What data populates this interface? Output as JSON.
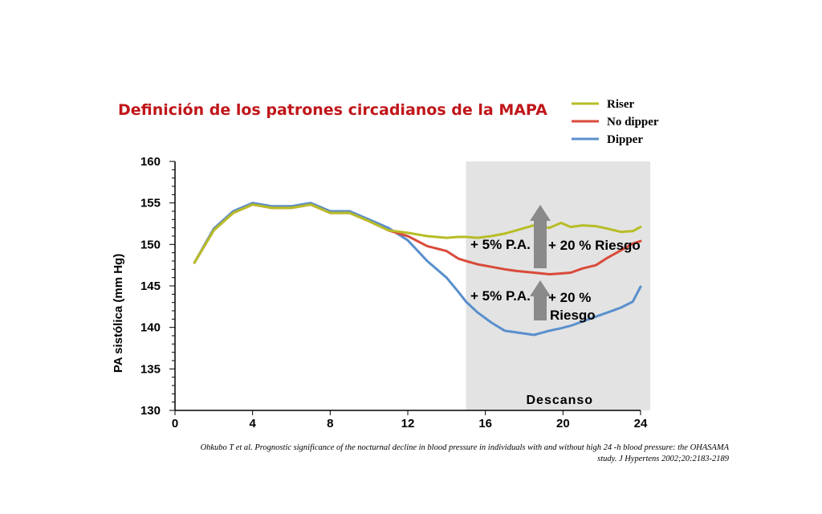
{
  "chart_data": {
    "type": "line",
    "title": "Definición de los patrones circadianos de la MAPA",
    "ylabel": "PA sistólica (mm Hg)",
    "xlabel": "",
    "xlim": [
      0,
      24
    ],
    "ylim": [
      130,
      160
    ],
    "xticks": [
      0,
      4,
      8,
      12,
      16,
      20,
      24
    ],
    "yticks": [
      130,
      135,
      140,
      145,
      150,
      155,
      160
    ],
    "legend_position": "top-right",
    "shaded_region": {
      "x": [
        15,
        24.5
      ],
      "label": "Descanso"
    },
    "series": [
      {
        "name": "Riser",
        "color": "#b7bd26",
        "x": [
          1,
          2,
          3,
          4,
          5,
          6,
          7,
          8,
          9,
          10,
          11,
          12,
          13,
          14,
          14.6,
          15,
          15.6,
          16.3,
          17,
          17.6,
          18.5,
          19.3,
          19.9,
          20.4,
          21,
          21.7,
          22.3,
          23,
          23.6,
          24
        ],
        "values": [
          147.8,
          151.7,
          153.8,
          154.8,
          154.4,
          154.4,
          154.8,
          153.8,
          153.8,
          152.8,
          151.7,
          151.4,
          151.0,
          150.8,
          150.9,
          150.9,
          150.8,
          151.0,
          151.3,
          151.7,
          152.3,
          152.0,
          152.6,
          152.1,
          152.3,
          152.2,
          151.9,
          151.5,
          151.6,
          152.1
        ]
      },
      {
        "name": "No dipper",
        "color": "#d94a3a",
        "x": [
          1,
          2,
          3,
          4,
          5,
          6,
          7,
          8,
          9,
          10,
          11,
          12,
          13,
          14,
          14.6,
          15,
          15.6,
          16.3,
          17,
          17.6,
          18.5,
          19.3,
          19.9,
          20.4,
          21,
          21.7,
          22.3,
          23,
          23.6,
          24
        ],
        "values": [
          147.8,
          151.7,
          153.8,
          154.8,
          154.4,
          154.4,
          154.8,
          153.8,
          153.8,
          152.8,
          151.7,
          151.0,
          149.8,
          149.2,
          148.3,
          148.0,
          147.6,
          147.3,
          147.0,
          146.8,
          146.6,
          146.4,
          146.5,
          146.6,
          147.1,
          147.5,
          148.4,
          149.3,
          150.1,
          150.4
        ]
      },
      {
        "name": "Dipper",
        "color": "#5a8fcc",
        "x": [
          1,
          2,
          3,
          4,
          5,
          6,
          7,
          8,
          9,
          10,
          11,
          12,
          13,
          14,
          14.6,
          15,
          15.6,
          16.3,
          17,
          17.6,
          18.5,
          19.3,
          19.9,
          20.4,
          21,
          21.7,
          22.3,
          23,
          23.6,
          24
        ],
        "values": [
          147.8,
          151.9,
          154.0,
          155.0,
          154.6,
          154.6,
          155.0,
          154.0,
          154.0,
          153.0,
          152.0,
          150.5,
          148.0,
          146.0,
          144.3,
          143.1,
          141.8,
          140.6,
          139.6,
          139.4,
          139.1,
          139.6,
          139.9,
          140.2,
          140.7,
          141.3,
          141.8,
          142.4,
          143.1,
          144.9
        ]
      }
    ],
    "annotations": [
      {
        "id": "upper",
        "text_left": "+  5% P.A.",
        "text_right": "+  20 % Riesgo"
      },
      {
        "id": "lower",
        "text_left": "+  5% P.A.",
        "text_right_line1": "+ 20 %",
        "text_right_line2": "Riesgo"
      }
    ]
  },
  "colors": {
    "title": "#c0161a",
    "shade": "#e3e3e3",
    "arrow": "#8a8a8a",
    "axis": "#000000"
  },
  "citation": "Ohkubo T et al. Prognostic significance of the nocturnal decline in blood pressure in individuals with and without high 24 -h blood pressure: the OHASAMA study. J Hypertens 2002;20:2183-2189"
}
